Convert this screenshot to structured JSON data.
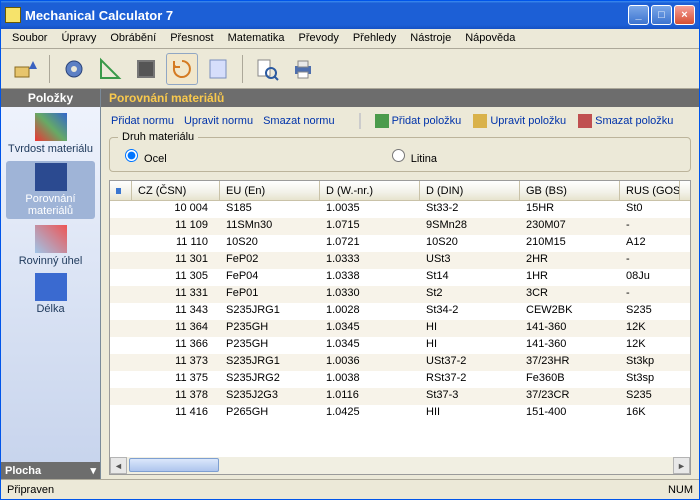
{
  "title": "Mechanical Calculator 7",
  "menu": [
    "Soubor",
    "Úpravy",
    "Obrábění",
    "Přesnost",
    "Matematika",
    "Převody",
    "Přehledy",
    "Nástroje",
    "Nápověda"
  ],
  "sidebar_title": "Položky",
  "sidebar_items": [
    {
      "label": "Tvrdost materiálu",
      "active": false,
      "icon_colors": [
        "#e33",
        "#6a6",
        "#36c"
      ]
    },
    {
      "label": "Porovnání materiálů",
      "active": true,
      "icon_colors": [
        "#2b4a90"
      ]
    },
    {
      "label": "Rovinný úhel",
      "active": false,
      "icon_colors": [
        "#9fc4e7",
        "#e55"
      ]
    },
    {
      "label": "Délka",
      "active": false,
      "icon_colors": [
        "#3a6ad0"
      ]
    }
  ],
  "sidebar_bottom": "Plocha",
  "main_title": "Porovnání materiálů",
  "links_left": [
    "Přidat normu",
    "Upravit normu",
    "Smazat normu"
  ],
  "links_right": [
    {
      "label": "Přidat položku",
      "cls": "ico-plus"
    },
    {
      "label": "Upravit položku",
      "cls": "ico-edit"
    },
    {
      "label": "Smazat položku",
      "cls": "ico-del"
    }
  ],
  "group_title": "Druh materiálu",
  "radios": [
    {
      "label": "Ocel",
      "checked": true
    },
    {
      "label": "Litina",
      "checked": false
    }
  ],
  "columns": [
    "CZ (ČSN)",
    "EU (En)",
    "D (W.-nr.)",
    "D (DIN)",
    "GB (BS)",
    "RUS (GOST)"
  ],
  "rows": [
    [
      "10 004",
      "S185",
      "1.0035",
      "St33-2",
      "15HR",
      "St0"
    ],
    [
      "11 109",
      "11SMn30",
      "1.0715",
      "9SMn28",
      "230M07",
      "-"
    ],
    [
      "11 110",
      "10S20",
      "1.0721",
      "10S20",
      "210M15",
      "A12"
    ],
    [
      "11 301",
      "FeP02",
      "1.0333",
      "USt3",
      "2HR",
      "-"
    ],
    [
      "11 305",
      "FeP04",
      "1.0338",
      "St14",
      "1HR",
      "08Ju"
    ],
    [
      "11 331",
      "FeP01",
      "1.0330",
      "St2",
      "3CR",
      "-"
    ],
    [
      "11 343",
      "S235JRG1",
      "1.0028",
      "St34-2",
      "CEW2BK",
      "S235"
    ],
    [
      "11 364",
      "P235GH",
      "1.0345",
      "HI",
      "141-360",
      "12K"
    ],
    [
      "11 366",
      "P235GH",
      "1.0345",
      "HI",
      "141-360",
      "12K"
    ],
    [
      "11 373",
      "S235JRG1",
      "1.0036",
      "USt37-2",
      "37/23HR",
      "St3kp"
    ],
    [
      "11 375",
      "S235JRG2",
      "1.0038",
      "RSt37-2",
      "Fe360B",
      "St3sp"
    ],
    [
      "11 378",
      "S235J2G3",
      "1.0116",
      "St37-3",
      "37/23CR",
      "S235"
    ],
    [
      "11 416",
      "P265GH",
      "1.0425",
      "HII",
      "151-400",
      "16K"
    ]
  ],
  "status_left": "Připraven",
  "status_right": "NUM"
}
